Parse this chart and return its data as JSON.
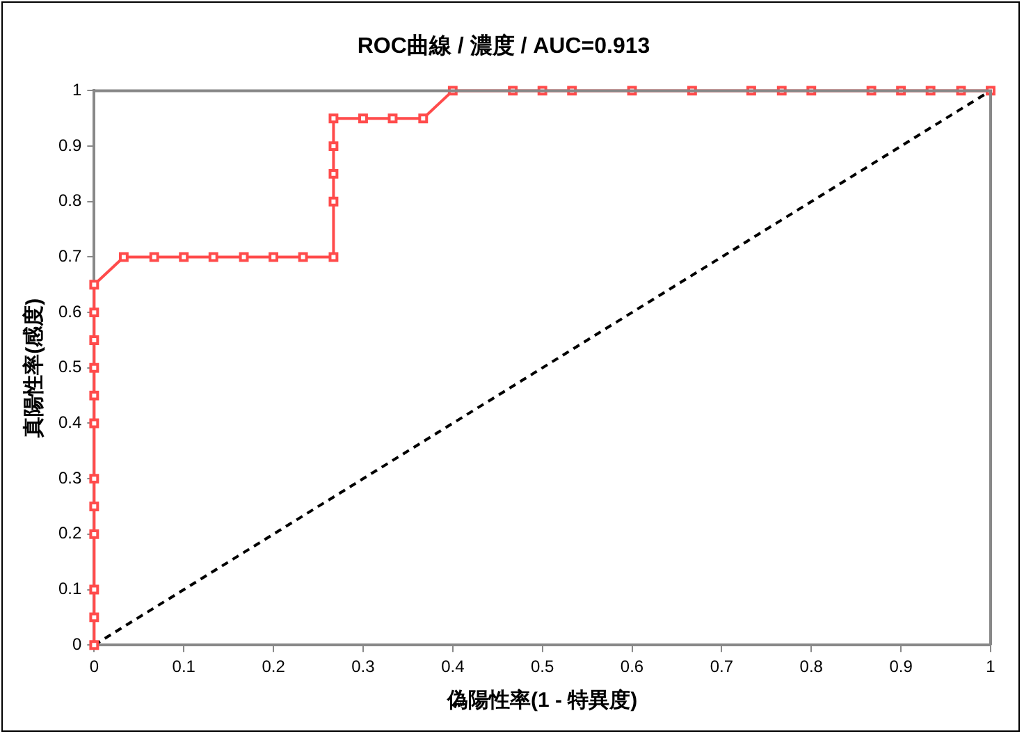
{
  "chart_data": {
    "type": "line",
    "title": "ROC曲線 / 濃度 / AUC=0.913",
    "xlabel": "偽陽性率(1 - 特異度)",
    "ylabel": "真陽性率(感度)",
    "xlim": [
      0,
      1
    ],
    "ylim": [
      0,
      1
    ],
    "xticks": [
      0,
      0.1,
      0.2,
      0.3,
      0.4,
      0.5,
      0.6,
      0.7,
      0.8,
      0.9,
      1
    ],
    "yticks": [
      0,
      0.1,
      0.2,
      0.3,
      0.4,
      0.5,
      0.6,
      0.7,
      0.8,
      0.9,
      1
    ],
    "grid": false,
    "legend": false,
    "series": [
      {
        "color": "#ff4b4b",
        "marker": "square",
        "line_style": "solid",
        "x": [
          0,
          0,
          0,
          0,
          0,
          0,
          0,
          0,
          0,
          0,
          0,
          0,
          0.033,
          0.067,
          0.1,
          0.133,
          0.167,
          0.2,
          0.233,
          0.267,
          0.267,
          0.267,
          0.267,
          0.267,
          0.3,
          0.333,
          0.367,
          0.4,
          0.467,
          0.5,
          0.533,
          0.6,
          0.667,
          0.733,
          0.767,
          0.8,
          0.867,
          0.9,
          0.933,
          0.967,
          1
        ],
        "values": [
          0,
          0.05,
          0.1,
          0.2,
          0.25,
          0.3,
          0.4,
          0.45,
          0.5,
          0.55,
          0.6,
          0.65,
          0.7,
          0.7,
          0.7,
          0.7,
          0.7,
          0.7,
          0.7,
          0.7,
          0.8,
          0.85,
          0.9,
          0.95,
          0.95,
          0.95,
          0.95,
          1,
          1,
          1,
          1,
          1,
          1,
          1,
          1,
          1,
          1,
          1,
          1,
          1,
          1
        ]
      },
      {
        "color": "#000000",
        "marker": "none",
        "line_style": "dashed",
        "x": [
          0,
          1
        ],
        "values": [
          0,
          1
        ]
      }
    ]
  }
}
